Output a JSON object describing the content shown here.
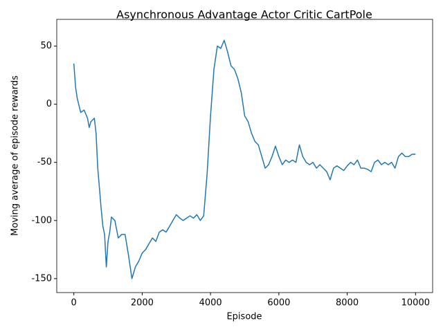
{
  "chart_data": {
    "type": "line",
    "title": "Asynchronous Advantage Actor Critic CartPole",
    "xlabel": "Episode",
    "ylabel": "Moving average of episode rewards",
    "color": "#1f77b4",
    "x": [
      0,
      50,
      100,
      200,
      300,
      400,
      450,
      500,
      600,
      650,
      700,
      800,
      850,
      900,
      950,
      1000,
      1050,
      1100,
      1200,
      1300,
      1400,
      1500,
      1600,
      1700,
      1800,
      1900,
      2000,
      2100,
      2200,
      2300,
      2400,
      2500,
      2600,
      2700,
      2800,
      2900,
      3000,
      3100,
      3200,
      3300,
      3400,
      3500,
      3600,
      3700,
      3800,
      3900,
      4000,
      4100,
      4200,
      4300,
      4400,
      4500,
      4600,
      4700,
      4800,
      4900,
      5000,
      5100,
      5200,
      5300,
      5400,
      5500,
      5600,
      5700,
      5800,
      5900,
      6000,
      6100,
      6200,
      6300,
      6400,
      6500,
      6600,
      6700,
      6800,
      6900,
      7000,
      7100,
      7200,
      7300,
      7400,
      7500,
      7600,
      7700,
      7800,
      7900,
      8000,
      8100,
      8200,
      8300,
      8400,
      8500,
      8600,
      8700,
      8800,
      8900,
      9000,
      9100,
      9200,
      9300,
      9400,
      9500,
      9600,
      9700,
      9800,
      9900,
      10000
    ],
    "values": [
      35,
      15,
      5,
      -7,
      -5,
      -12,
      -20,
      -15,
      -12,
      -25,
      -55,
      -90,
      -105,
      -112,
      -140,
      -118,
      -110,
      -97,
      -100,
      -115,
      -112,
      -112,
      -130,
      -150,
      -140,
      -135,
      -128,
      -125,
      -120,
      -115,
      -118,
      -110,
      -108,
      -110,
      -105,
      -100,
      -95,
      -98,
      -100,
      -98,
      -96,
      -98,
      -95,
      -100,
      -96,
      -60,
      -10,
      30,
      50,
      48,
      55,
      45,
      33,
      30,
      22,
      10,
      -10,
      -15,
      -25,
      -32,
      -35,
      -45,
      -55,
      -52,
      -45,
      -36,
      -45,
      -52,
      -48,
      -50,
      -48,
      -50,
      -35,
      -45,
      -50,
      -52,
      -50,
      -55,
      -52,
      -55,
      -58,
      -65,
      -55,
      -53,
      -55,
      -57,
      -53,
      -50,
      -52,
      -48,
      -55,
      -55,
      -56,
      -58,
      -50,
      -48,
      -52,
      -50,
      -52,
      -50,
      -55,
      -45,
      -42,
      -45,
      -45,
      -43,
      -43
    ],
    "xlim": [
      -500,
      10500
    ],
    "ylim": [
      -162,
      73
    ],
    "xticks": [
      0,
      2000,
      4000,
      6000,
      8000,
      10000
    ],
    "yticks": [
      -150,
      -100,
      -50,
      0,
      50
    ]
  }
}
